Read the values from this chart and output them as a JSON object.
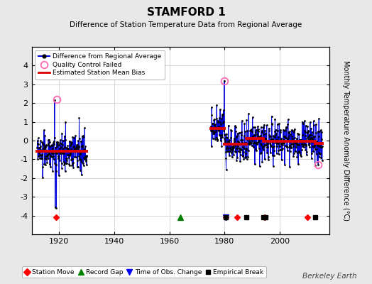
{
  "title": "STAMFORD 1",
  "subtitle": "Difference of Station Temperature Data from Regional Average",
  "ylabel": "Monthly Temperature Anomaly Difference (°C)",
  "ylim": [
    -5,
    5
  ],
  "xlim": [
    1910,
    2018
  ],
  "xticks": [
    1920,
    1940,
    1960,
    1980,
    2000
  ],
  "yticks": [
    -4,
    -3,
    -2,
    -1,
    0,
    1,
    2,
    3,
    4
  ],
  "bg_color": "#e8e8e8",
  "plot_bg_color": "#ffffff",
  "grid_color": "#c8c8c8",
  "watermark": "Berkeley Earth",
  "line_color": "#0000dd",
  "dot_color": "#000000",
  "bias_color": "#dd0000",
  "qc_color": "#ff69b4",
  "legend_items": [
    "Difference from Regional Average",
    "Quality Control Failed",
    "Estimated Station Mean Bias"
  ],
  "bottom_legend_items": [
    "Station Move",
    "Record Gap",
    "Time of Obs. Change",
    "Empirical Break"
  ],
  "seg1_start": 1912.0,
  "seg1_end": 1930.0,
  "seg1_bias": -0.55,
  "seg1_seed": 1,
  "seg2_start": 1975.0,
  "seg2_end": 1987.9,
  "seg2_bias1": 0.65,
  "seg2_bias2": -0.2,
  "seg2_break": 1980.0,
  "seg2_seed": 2,
  "seg3_start": 1988.0,
  "seg3_end": 2012.9,
  "seg3_bias1": 0.1,
  "seg3_bias2": -0.05,
  "seg3_break": 1994.0,
  "seg3_seed": 3,
  "seg4_start": 2013.0,
  "seg4_end": 2015.5,
  "seg4_bias": -0.15,
  "seg4_seed": 4,
  "qc_points": [
    [
      1919.25,
      2.2
    ],
    [
      1979.9,
      3.2
    ],
    [
      2014.0,
      -1.3
    ]
  ],
  "station_moves_x": [
    1918.75,
    1980.5,
    1984.5,
    1994.5,
    2010.0
  ],
  "record_gaps_x": [
    1964.0
  ],
  "obs_changes_x": [
    1980.5
  ],
  "emp_breaks_x": [
    1980.5,
    1988.0,
    1994.0,
    1995.0,
    2013.0
  ],
  "marker_y": -4.1
}
